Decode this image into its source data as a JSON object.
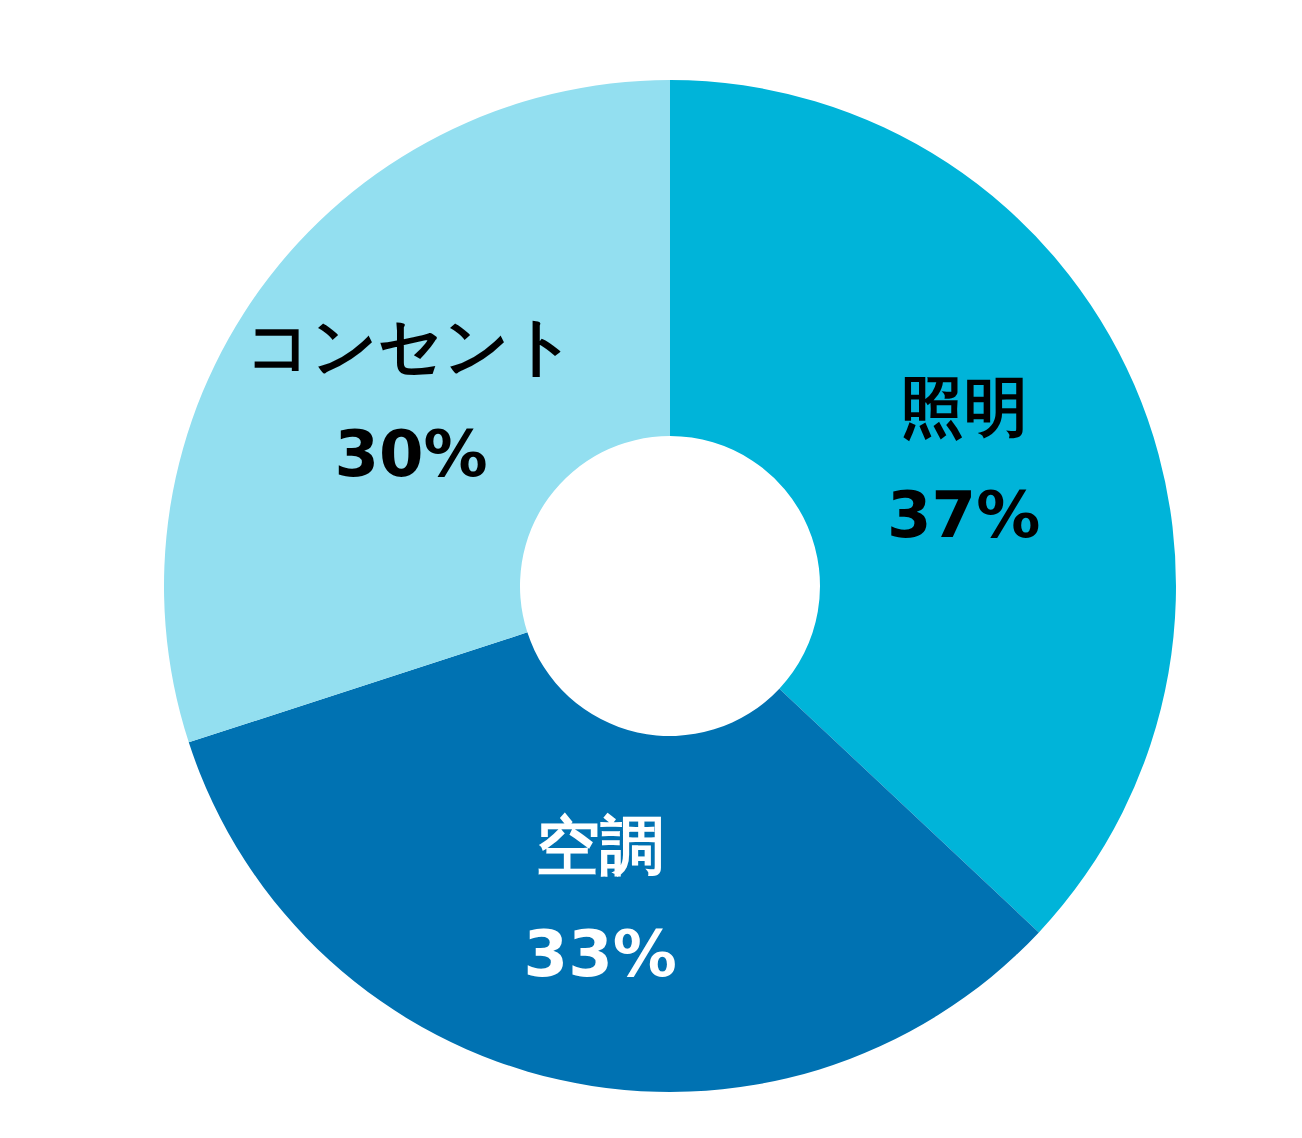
{
  "chart_data": {
    "type": "donut",
    "categories": [
      "照明",
      "空調",
      "コンセント"
    ],
    "values": [
      37,
      33,
      30
    ],
    "colors": [
      "#00b4d9",
      "#0072b2",
      "#93dff0"
    ],
    "value_labels": [
      "37%",
      "33%",
      "30%"
    ]
  }
}
